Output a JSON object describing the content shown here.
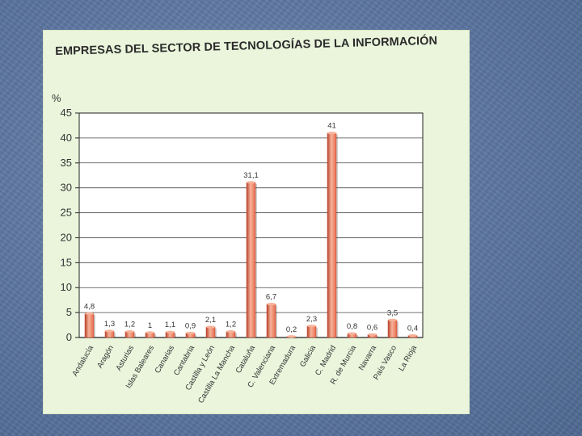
{
  "chart_data": {
    "type": "bar",
    "title": "EMPRESAS DEL SECTOR DE TECNOLOGÍAS DE LA INFORMACIÓN",
    "ylabel": "%",
    "xlabel": "",
    "ylim": [
      0,
      45
    ],
    "yticks": [
      0,
      5,
      10,
      15,
      20,
      25,
      30,
      35,
      40,
      45
    ],
    "grid": true,
    "categories": [
      "Andalucía",
      "Aragón",
      "Asturias",
      "Islas Baleares",
      "Canarias",
      "Cantabria",
      "Castilla y León",
      "Castilla La Mancha",
      "Cataluña",
      "C. Valenciana",
      "Extremadura",
      "Galicia",
      "C. Madrid",
      "R. de Murcia",
      "Navarra",
      "País Vasco",
      "La Rioja"
    ],
    "values": [
      4.8,
      1.3,
      1.2,
      1,
      1.1,
      0.9,
      2.1,
      1.2,
      31.1,
      6.7,
      0.2,
      2.3,
      41,
      0.8,
      0.6,
      3.5,
      0.4
    ],
    "value_labels": [
      "4,8",
      "1,3",
      "1,2",
      "1",
      "1,1",
      "0,9",
      "2,1",
      "1,2",
      "31,1",
      "6,7",
      "0,2",
      "2,3",
      "41",
      "0,8",
      "0,6",
      "3,5",
      "0,4"
    ],
    "colors": {
      "bar": "#e8694a",
      "bar_highlight": "#f7b39a",
      "bar_shadow": "#b9432b",
      "plot_bg": "#ffffff",
      "grid": "#444444"
    }
  }
}
